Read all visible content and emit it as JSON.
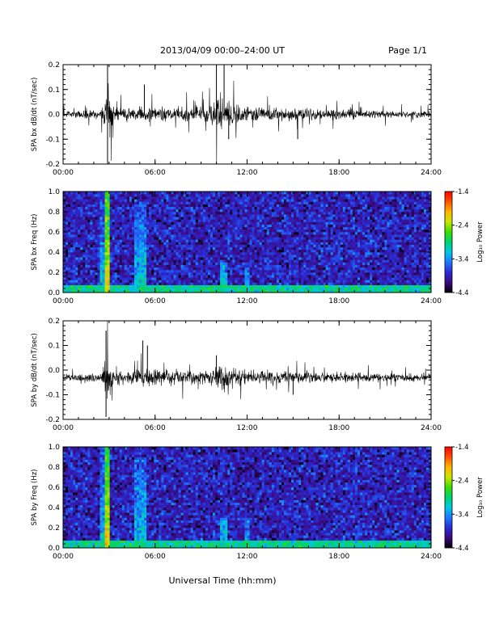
{
  "header": {
    "title": "2013/04/09  00:00–24:00 UT",
    "page": "Page 1/1"
  },
  "footer": {
    "xlabel": "Universal Time (hh:mm)"
  },
  "colors": {
    "trace": "#000000",
    "spectrogram_background": "#3a0f7a",
    "colormap": [
      "#000000",
      "#3c0a82",
      "#2a2ad2",
      "#1e78ff",
      "#00c8e6",
      "#00d26e",
      "#3cdc00",
      "#c8e600",
      "#ffb400",
      "#ff5000",
      "#ff0000"
    ]
  },
  "chart_data": [
    {
      "type": "line",
      "ylabel": "SPA bx dB/dt (nT/sec)",
      "xlim": [
        0,
        24
      ],
      "ylim": [
        -0.2,
        0.2
      ],
      "x_ticks": [
        "00:00",
        "06:00",
        "12:00",
        "18:00",
        "24:00"
      ],
      "y_ticks": [
        "0.2",
        "0.1",
        "0.0",
        "-0.1",
        "-0.2"
      ],
      "baseline": 0.0,
      "noise_envelope": {
        "x": [
          0,
          2.5,
          2.9,
          3.3,
          5.0,
          9.5,
          10.2,
          11.0,
          12.0,
          15.0,
          17.0,
          24.0
        ],
        "amplitude": [
          0.02,
          0.03,
          0.2,
          0.04,
          0.04,
          0.05,
          0.12,
          0.08,
          0.05,
          0.04,
          0.03,
          0.02
        ]
      },
      "features": [
        {
          "x": 2.9,
          "y_max": 0.2,
          "y_min": -0.2
        },
        {
          "x": 5.3,
          "y_max": 0.12
        },
        {
          "x": 10.0,
          "y_max": 0.2
        },
        {
          "x": 10.5,
          "y_max": 0.2
        },
        {
          "x": 10.8,
          "y_min": -0.1
        },
        {
          "x": 15.3,
          "y_min": -0.1
        }
      ]
    },
    {
      "type": "heatmap",
      "ylabel": "SPA bx Freq (Hz)",
      "xlim": [
        0,
        24
      ],
      "ylim": [
        0,
        1.0
      ],
      "x_ticks": [
        "00:00",
        "06:00",
        "12:00",
        "18:00",
        "24:00"
      ],
      "y_ticks": [
        "1.0",
        "0.8",
        "0.6",
        "0.4",
        "0.2",
        "0.0"
      ],
      "colorbar": {
        "label": "Log₁₀ Power",
        "ticks": [
          "-1.4",
          "-2.4",
          "-3.4",
          "-4.4"
        ],
        "range": [
          -4.4,
          -1.4
        ]
      },
      "background_log_power": -3.9,
      "low_freq_band": {
        "freq_max": 0.05,
        "log_power": -3.0
      },
      "enhancements": [
        {
          "x": 2.9,
          "log_power": -2.2,
          "freq_max": 1.0
        },
        {
          "x": 2.6,
          "log_power": -3.2,
          "freq_max": 1.0
        },
        {
          "x": 4.8,
          "log_power": -3.2,
          "freq_max": 0.9
        },
        {
          "x": 5.2,
          "log_power": -3.1,
          "freq_max": 0.9
        },
        {
          "x": 10.5,
          "log_power": -3.2,
          "freq_max": 0.3
        },
        {
          "x": 12.0,
          "log_power": -3.4,
          "freq_max": 0.3
        }
      ]
    },
    {
      "type": "line",
      "ylabel": "SPA by dB/dt (nT/sec)",
      "xlim": [
        0,
        24
      ],
      "ylim": [
        -0.2,
        0.2
      ],
      "x_ticks": [
        "00:00",
        "06:00",
        "12:00",
        "18:00",
        "24:00"
      ],
      "y_ticks": [
        "0.2",
        "0.1",
        "0.0",
        "-0.1",
        "-0.2"
      ],
      "baseline": -0.03,
      "noise_envelope": {
        "x": [
          0,
          2.5,
          2.9,
          3.3,
          5.0,
          9.5,
          10.2,
          11.0,
          12.0,
          15.0,
          17.0,
          24.0
        ],
        "amplitude": [
          0.02,
          0.03,
          0.17,
          0.04,
          0.05,
          0.04,
          0.08,
          0.06,
          0.04,
          0.04,
          0.03,
          0.02
        ]
      },
      "features": [
        {
          "x": 2.8,
          "y_max": 0.16,
          "y_min": -0.19
        },
        {
          "x": 5.2,
          "y_max": 0.12
        },
        {
          "x": 5.5,
          "y_max": 0.1
        },
        {
          "x": 10.0,
          "y_max": 0.06
        },
        {
          "x": 15.0,
          "y_min": -0.1
        }
      ]
    },
    {
      "type": "heatmap",
      "ylabel": "SPA by Freq (Hz)",
      "xlim": [
        0,
        24
      ],
      "ylim": [
        0,
        1.0
      ],
      "x_ticks": [
        "00:00",
        "06:00",
        "12:00",
        "18:00",
        "24:00"
      ],
      "y_ticks": [
        "1.0",
        "0.8",
        "0.6",
        "0.4",
        "0.2",
        "0.0"
      ],
      "colorbar": {
        "label": "Log₁₀ Power",
        "ticks": [
          "-1.4",
          "-2.4",
          "-3.4",
          "-4.4"
        ],
        "range": [
          -4.4,
          -1.4
        ]
      },
      "background_log_power": -3.9,
      "low_freq_band": {
        "freq_max": 0.05,
        "log_power": -3.0
      },
      "enhancements": [
        {
          "x": 2.9,
          "log_power": -2.2,
          "freq_max": 1.0
        },
        {
          "x": 2.6,
          "log_power": -3.2,
          "freq_max": 1.0
        },
        {
          "x": 4.8,
          "log_power": -3.2,
          "freq_max": 0.9
        },
        {
          "x": 5.2,
          "log_power": -3.1,
          "freq_max": 0.9
        },
        {
          "x": 10.5,
          "log_power": -3.2,
          "freq_max": 0.3
        },
        {
          "x": 12.0,
          "log_power": -3.4,
          "freq_max": 0.3
        }
      ]
    }
  ]
}
